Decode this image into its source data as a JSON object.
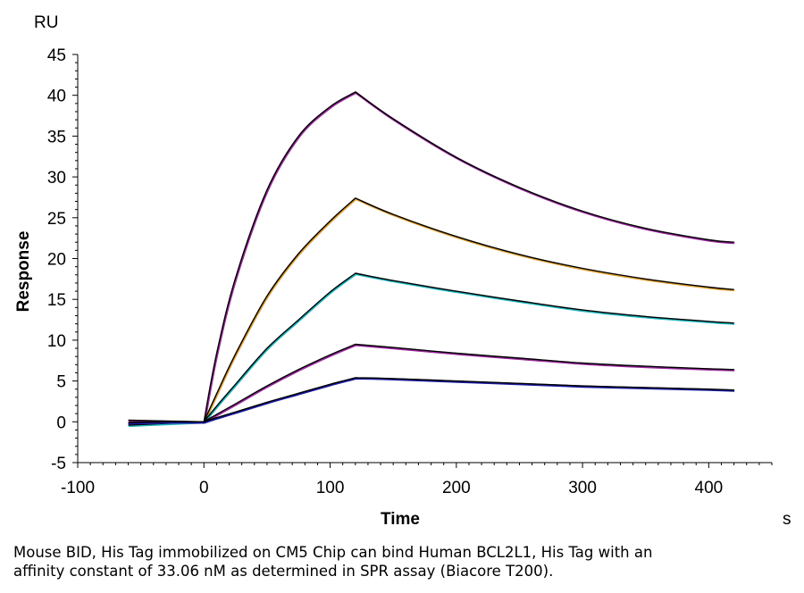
{
  "chart_data": {
    "type": "line",
    "y_unit": "RU",
    "x_unit": "s",
    "xlabel": "Time",
    "ylabel": "Response",
    "xlim": [
      -100,
      450
    ],
    "ylim": [
      -5,
      45
    ],
    "x_ticks": [
      -100,
      0,
      100,
      200,
      300,
      400
    ],
    "y_ticks": [
      -5,
      0,
      5,
      10,
      15,
      20,
      25,
      30,
      35,
      40,
      45
    ],
    "grid": false,
    "association_end": 120,
    "series": [
      {
        "values_at": "t",
        "rmax_color": "#7a2a8e",
        "points": [
          [
            -60,
            0.2
          ],
          [
            -30,
            0.1
          ],
          [
            0,
            0
          ],
          [
            10,
            8.3
          ],
          [
            25,
            17.6
          ],
          [
            50,
            28.4
          ],
          [
            75,
            35.0
          ],
          [
            100,
            38.6
          ],
          [
            120,
            40.4
          ],
          [
            150,
            37.1
          ],
          [
            200,
            32.4
          ],
          [
            250,
            28.7
          ],
          [
            300,
            25.8
          ],
          [
            350,
            23.7
          ],
          [
            400,
            22.3
          ],
          [
            420,
            22.0
          ]
        ],
        "data_color": "#9c2aa0"
      },
      {
        "points": [
          [
            -60,
            -0.2
          ],
          [
            -30,
            -0.1
          ],
          [
            0,
            0
          ],
          [
            10,
            3.4
          ],
          [
            25,
            8.3
          ],
          [
            50,
            15.4
          ],
          [
            75,
            20.6
          ],
          [
            100,
            24.6
          ],
          [
            120,
            27.4
          ],
          [
            150,
            25.4
          ],
          [
            200,
            22.7
          ],
          [
            250,
            20.5
          ],
          [
            300,
            18.8
          ],
          [
            350,
            17.5
          ],
          [
            400,
            16.5
          ],
          [
            420,
            16.2
          ]
        ],
        "data_color": "#e0a030"
      },
      {
        "points": [
          [
            -60,
            -0.4
          ],
          [
            -30,
            -0.2
          ],
          [
            0,
            0
          ],
          [
            10,
            1.9
          ],
          [
            25,
            4.6
          ],
          [
            50,
            9.0
          ],
          [
            75,
            12.5
          ],
          [
            100,
            15.9
          ],
          [
            120,
            18.2
          ],
          [
            150,
            17.3
          ],
          [
            200,
            16.0
          ],
          [
            250,
            14.8
          ],
          [
            300,
            13.7
          ],
          [
            350,
            12.9
          ],
          [
            400,
            12.3
          ],
          [
            420,
            12.1
          ]
        ],
        "data_color": "#1fb7c0"
      },
      {
        "points": [
          [
            -60,
            -0.1
          ],
          [
            -30,
            0
          ],
          [
            0,
            0
          ],
          [
            10,
            0.9
          ],
          [
            25,
            2.2
          ],
          [
            50,
            4.4
          ],
          [
            75,
            6.4
          ],
          [
            100,
            8.2
          ],
          [
            120,
            9.5
          ],
          [
            150,
            9.1
          ],
          [
            200,
            8.4
          ],
          [
            250,
            7.8
          ],
          [
            300,
            7.2
          ],
          [
            350,
            6.8
          ],
          [
            400,
            6.5
          ],
          [
            420,
            6.4
          ]
        ],
        "data_color": "#9c2aa0"
      },
      {
        "points": [
          [
            -60,
            -0.1
          ],
          [
            -30,
            0
          ],
          [
            0,
            0
          ],
          [
            10,
            0.5
          ],
          [
            25,
            1.2
          ],
          [
            50,
            2.4
          ],
          [
            75,
            3.5
          ],
          [
            100,
            4.6
          ],
          [
            120,
            5.4
          ],
          [
            150,
            5.3
          ],
          [
            200,
            5.0
          ],
          [
            250,
            4.7
          ],
          [
            300,
            4.4
          ],
          [
            350,
            4.2
          ],
          [
            400,
            4.0
          ],
          [
            420,
            3.9
          ]
        ],
        "data_color": "#1a1aa0"
      }
    ]
  },
  "caption": {
    "line1": "Mouse BID, His Tag immobilized on CM5 Chip can bind Human BCL2L1, His Tag with an",
    "line2": "affinity constant of 33.06 nM as determined in SPR assay (Biacore T200)."
  }
}
